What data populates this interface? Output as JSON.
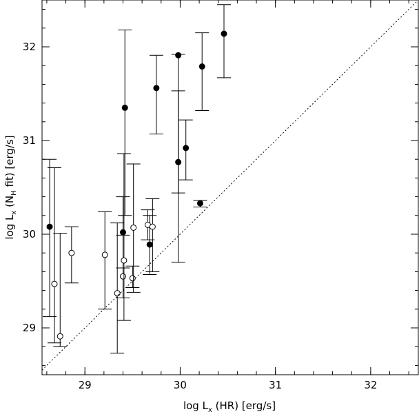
{
  "chart_data": {
    "type": "scatter",
    "xlim": [
      28.55,
      32.5
    ],
    "ylim": [
      28.5,
      32.5
    ],
    "x_ticks": [
      29,
      30,
      31,
      32
    ],
    "y_ticks": [
      29,
      30,
      31,
      32
    ],
    "x_tick_labels": [
      "29",
      "30",
      "31",
      "32"
    ],
    "y_tick_labels": [
      "29",
      "30",
      "31",
      "32"
    ],
    "xlabel": "log L",
    "xlabel_sub": "x",
    "xlabel_rest": " (HR) [erg/s]",
    "ylabel": "log L",
    "ylabel_sub": "x",
    "ylabel_mid": " (N",
    "ylabel_sub2": "H",
    "ylabel_rest": " fit) [erg/s]",
    "grid": false,
    "reference_line": "y = x",
    "series": [
      {
        "marker": "filled-circle",
        "points": [
          {
            "x": 28.63,
            "y": 30.08,
            "lo": 29.12,
            "hi": 30.8
          },
          {
            "x": 29.4,
            "y": 30.02,
            "lo": 29.64,
            "hi": 30.4
          },
          {
            "x": 29.42,
            "y": 31.35,
            "lo": 30.2,
            "hi": 32.18
          },
          {
            "x": 29.68,
            "y": 29.89,
            "lo": 29.57,
            "hi": 30.2
          },
          {
            "x": 29.75,
            "y": 31.56,
            "lo": 31.07,
            "hi": 31.91
          },
          {
            "x": 29.98,
            "y": 31.91,
            "lo": 30.44,
            "hi": 31.92
          },
          {
            "x": 29.98,
            "y": 30.77,
            "lo": 29.7,
            "hi": 31.53
          },
          {
            "x": 30.06,
            "y": 30.92,
            "lo": 30.58,
            "hi": 31.22
          },
          {
            "x": 30.21,
            "y": 30.33,
            "lo": 30.29,
            "hi": 30.36
          },
          {
            "x": 30.23,
            "y": 31.79,
            "lo": 31.32,
            "hi": 32.15
          },
          {
            "x": 30.46,
            "y": 32.14,
            "lo": 31.67,
            "hi": 32.45
          }
        ]
      },
      {
        "marker": "open-circle",
        "points": [
          {
            "x": 28.68,
            "y": 29.47,
            "lo": 28.84,
            "hi": 30.71
          },
          {
            "x": 28.74,
            "y": 28.91,
            "lo": 28.8,
            "hi": 30.01
          },
          {
            "x": 28.86,
            "y": 29.8,
            "lo": 29.48,
            "hi": 30.08
          },
          {
            "x": 29.21,
            "y": 29.78,
            "lo": 29.2,
            "hi": 30.24
          },
          {
            "x": 29.34,
            "y": 29.37,
            "lo": 28.73,
            "hi": 30.12
          },
          {
            "x": 29.4,
            "y": 29.55,
            "lo": 29.32,
            "hi": 29.99
          },
          {
            "x": 29.41,
            "y": 29.72,
            "lo": 29.08,
            "hi": 30.86
          },
          {
            "x": 29.5,
            "y": 29.53,
            "lo": 29.43,
            "hi": 29.66
          },
          {
            "x": 29.51,
            "y": 30.07,
            "lo": 29.38,
            "hi": 30.75
          },
          {
            "x": 29.66,
            "y": 30.1,
            "lo": 29.94,
            "hi": 30.26
          },
          {
            "x": 29.71,
            "y": 30.08,
            "lo": 29.6,
            "hi": 30.38
          }
        ]
      }
    ]
  }
}
